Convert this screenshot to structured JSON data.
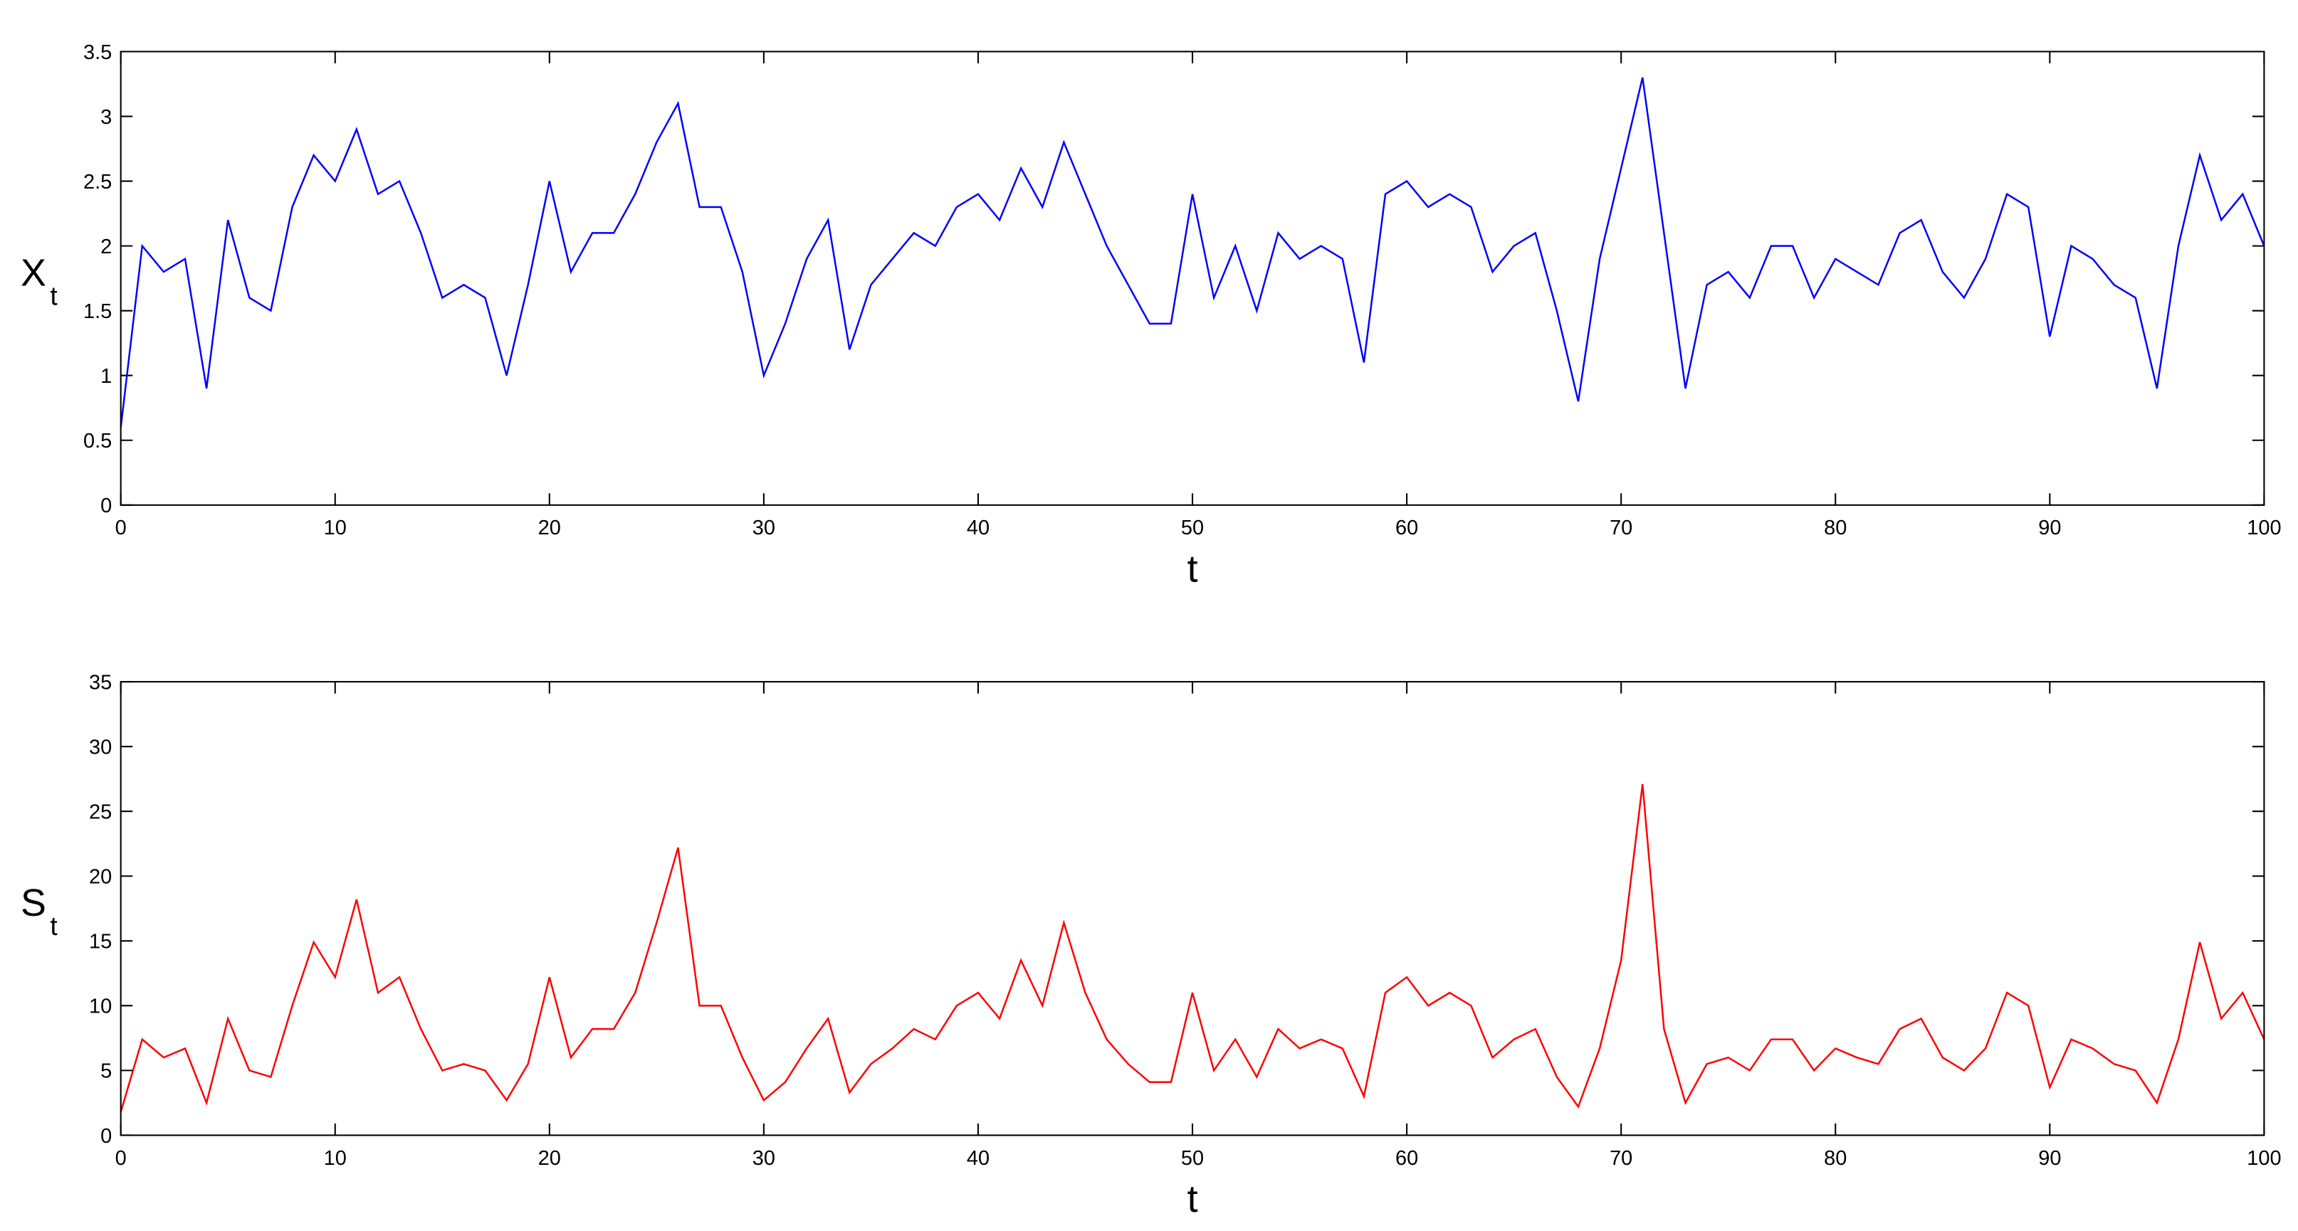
{
  "chart_data": [
    {
      "type": "line",
      "xlabel": "t",
      "ylabel": "X",
      "ylabel_sub": "t",
      "x": [
        0,
        1,
        2,
        3,
        4,
        5,
        6,
        7,
        8,
        9,
        10,
        11,
        12,
        13,
        14,
        15,
        16,
        17,
        18,
        19,
        20,
        21,
        22,
        23,
        24,
        25,
        26,
        27,
        28,
        29,
        30,
        31,
        32,
        33,
        34,
        35,
        36,
        37,
        38,
        39,
        40,
        41,
        42,
        43,
        44,
        45,
        46,
        47,
        48,
        49,
        50,
        51,
        52,
        53,
        54,
        55,
        56,
        57,
        58,
        59,
        60,
        61,
        62,
        63,
        64,
        65,
        66,
        67,
        68,
        69,
        70,
        71,
        72,
        73,
        74,
        75,
        76,
        77,
        78,
        79,
        80,
        81,
        82,
        83,
        84,
        85,
        86,
        87,
        88,
        89,
        90,
        91,
        92,
        93,
        94,
        95,
        96,
        97,
        98,
        99,
        100
      ],
      "series": [
        {
          "color": "#0000ff",
          "values": [
            0.6,
            2.0,
            1.8,
            1.9,
            0.9,
            2.2,
            1.6,
            1.5,
            2.3,
            2.7,
            2.5,
            2.9,
            2.4,
            2.5,
            2.1,
            1.6,
            1.7,
            1.6,
            1.0,
            1.7,
            2.5,
            1.8,
            2.1,
            2.1,
            2.4,
            2.8,
            3.1,
            2.3,
            2.3,
            1.8,
            1.0,
            1.4,
            1.9,
            2.2,
            1.2,
            1.7,
            1.9,
            2.1,
            2.0,
            2.3,
            2.4,
            2.2,
            2.6,
            2.3,
            2.8,
            2.4,
            2.0,
            1.7,
            1.4,
            1.4,
            2.4,
            1.6,
            2.0,
            1.5,
            2.1,
            1.9,
            2.0,
            1.9,
            1.1,
            2.4,
            2.5,
            2.3,
            2.4,
            2.3,
            1.8,
            2.0,
            2.1,
            1.5,
            0.8,
            1.9,
            2.6,
            3.3,
            2.1,
            0.9,
            1.7,
            1.8,
            1.6,
            2.0,
            2.0,
            1.6,
            1.9,
            1.8,
            1.7,
            2.1,
            2.2,
            1.8,
            1.6,
            1.9,
            2.4,
            2.3,
            1.3,
            2.0,
            1.9,
            1.7,
            1.6,
            0.9,
            2.0,
            2.7,
            2.2,
            2.4,
            2.0
          ]
        }
      ],
      "xlim": [
        0,
        100
      ],
      "xticks": [
        0,
        10,
        20,
        30,
        40,
        50,
        60,
        70,
        80,
        90,
        100
      ],
      "ylim": [
        0,
        3.5
      ],
      "yticks": [
        0,
        0.5,
        1,
        1.5,
        2,
        2.5,
        3,
        3.5
      ]
    },
    {
      "type": "line",
      "xlabel": "t",
      "ylabel": "S",
      "ylabel_sub": "t",
      "x": [
        0,
        1,
        2,
        3,
        4,
        5,
        6,
        7,
        8,
        9,
        10,
        11,
        12,
        13,
        14,
        15,
        16,
        17,
        18,
        19,
        20,
        21,
        22,
        23,
        24,
        25,
        26,
        27,
        28,
        29,
        30,
        31,
        32,
        33,
        34,
        35,
        36,
        37,
        38,
        39,
        40,
        41,
        42,
        43,
        44,
        45,
        46,
        47,
        48,
        49,
        50,
        51,
        52,
        53,
        54,
        55,
        56,
        57,
        58,
        59,
        60,
        61,
        62,
        63,
        64,
        65,
        66,
        67,
        68,
        69,
        70,
        71,
        72,
        73,
        74,
        75,
        76,
        77,
        78,
        79,
        80,
        81,
        82,
        83,
        84,
        85,
        86,
        87,
        88,
        89,
        90,
        91,
        92,
        93,
        94,
        95,
        96,
        97,
        98,
        99,
        100
      ],
      "series": [
        {
          "color": "#ff0000",
          "values": [
            1.8,
            7.4,
            6.0,
            6.7,
            2.5,
            9.0,
            5.0,
            4.5,
            10.0,
            14.9,
            12.2,
            18.2,
            11.0,
            12.2,
            8.2,
            5.0,
            5.5,
            5.0,
            2.7,
            5.5,
            12.2,
            6.0,
            8.2,
            8.2,
            11.0,
            16.4,
            22.2,
            10.0,
            10.0,
            6.0,
            2.7,
            4.1,
            6.7,
            9.0,
            3.3,
            5.5,
            6.7,
            8.2,
            7.4,
            10.0,
            11.0,
            9.0,
            13.5,
            10.0,
            16.4,
            11.0,
            7.4,
            5.5,
            4.1,
            4.1,
            11.0,
            5.0,
            7.4,
            4.5,
            8.2,
            6.7,
            7.4,
            6.7,
            3.0,
            11.0,
            12.2,
            10.0,
            11.0,
            10.0,
            6.0,
            7.4,
            8.2,
            4.5,
            2.2,
            6.7,
            13.5,
            27.1,
            8.2,
            2.5,
            5.5,
            6.0,
            5.0,
            7.4,
            7.4,
            5.0,
            6.7,
            6.0,
            5.5,
            8.2,
            9.0,
            6.0,
            5.0,
            6.7,
            11.0,
            10.0,
            3.7,
            7.4,
            6.7,
            5.5,
            5.0,
            2.5,
            7.4,
            14.9,
            9.0,
            11.0,
            7.4
          ]
        }
      ],
      "xlim": [
        0,
        100
      ],
      "xticks": [
        0,
        10,
        20,
        30,
        40,
        50,
        60,
        70,
        80,
        90,
        100
      ],
      "ylim": [
        0,
        35
      ],
      "yticks": [
        0,
        5,
        10,
        15,
        20,
        25,
        30,
        35
      ]
    }
  ]
}
